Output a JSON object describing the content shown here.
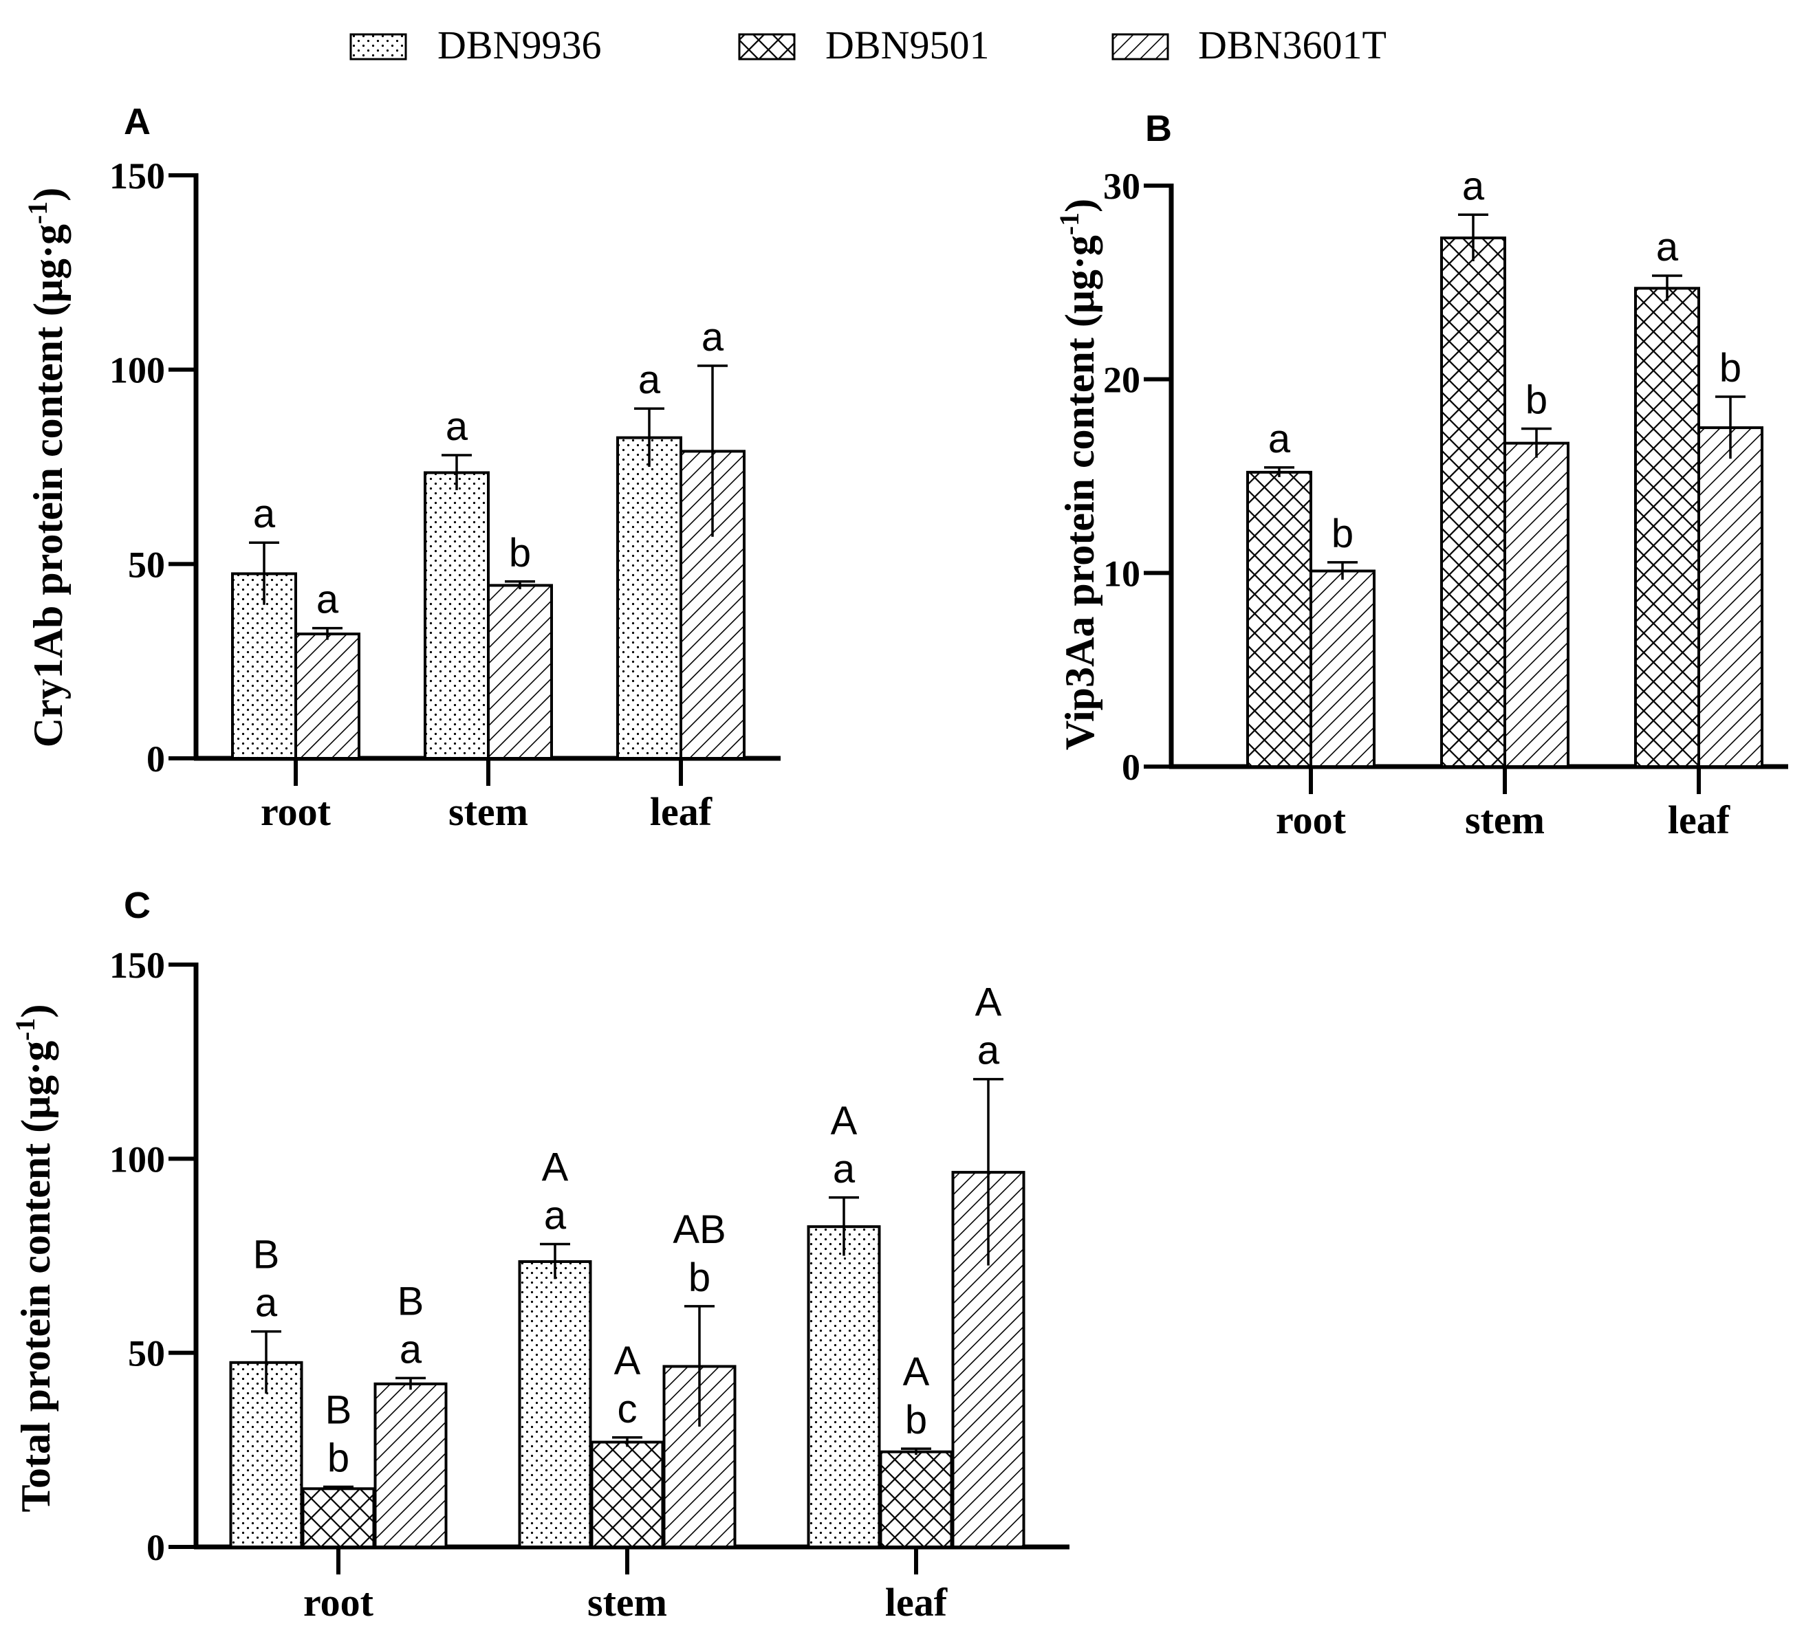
{
  "legend": {
    "entries": [
      {
        "label": "DBN9936",
        "pattern": "dots"
      },
      {
        "label": "DBN9501",
        "pattern": "cross"
      },
      {
        "label": "DBN3601T",
        "pattern": "diag"
      }
    ]
  },
  "colors": {
    "ink": "#000000",
    "background": "#ffffff"
  },
  "chart_data": [
    {
      "panel": "A",
      "type": "bar",
      "ylabel": "Cry1Ab protein content (μg·g-1)",
      "ylabel_base": "Cry1Ab protein content (μg·g",
      "ylabel_sup": "-1",
      "ylabel_close": ")",
      "ylim": [
        0,
        150
      ],
      "yticks": [
        "0",
        "50",
        "100",
        "150"
      ],
      "categories": [
        "root",
        "stem",
        "leaf"
      ],
      "series": [
        {
          "name": "DBN9936",
          "pattern": "dots",
          "values": [
            47.5,
            73.5,
            82.5
          ],
          "errors": [
            8,
            4.5,
            7.5
          ],
          "letters": [
            "a",
            "a",
            "a"
          ]
        },
        {
          "name": "DBN3601T",
          "pattern": "diag",
          "values": [
            32,
            44.5,
            79
          ],
          "errors": [
            1.5,
            1,
            22
          ],
          "letters": [
            "a",
            "b",
            "a"
          ]
        }
      ]
    },
    {
      "panel": "B",
      "type": "bar",
      "ylabel": "Vip3Aa protein content (μg·g-1)",
      "ylabel_base": "Vip3Aa protein content (μg·g",
      "ylabel_sup": "-1",
      "ylabel_close": ")",
      "ylim": [
        0,
        30
      ],
      "yticks": [
        "0",
        "10",
        "20",
        "30"
      ],
      "categories": [
        "root",
        "stem",
        "leaf"
      ],
      "series": [
        {
          "name": "DBN9501",
          "pattern": "cross",
          "values": [
            15.2,
            27.3,
            24.7
          ],
          "errors": [
            0.25,
            1.2,
            0.65
          ],
          "letters": [
            "a",
            "a",
            "a"
          ]
        },
        {
          "name": "DBN3601T",
          "pattern": "diag",
          "values": [
            10.1,
            16.7,
            17.5
          ],
          "errors": [
            0.45,
            0.75,
            1.6
          ],
          "letters": [
            "b",
            "b",
            "b"
          ]
        }
      ]
    },
    {
      "panel": "C",
      "type": "bar",
      "ylabel": "Total protein content (μg·g-1)",
      "ylabel_base": "Total protein content (μg·g",
      "ylabel_sup": "-1",
      "ylabel_close": ")",
      "ylim": [
        0,
        150
      ],
      "yticks": [
        "0",
        "50",
        "100",
        "150"
      ],
      "categories": [
        "root",
        "stem",
        "leaf"
      ],
      "series": [
        {
          "name": "DBN9936",
          "pattern": "dots",
          "values": [
            47.5,
            73.5,
            82.5
          ],
          "errors": [
            8,
            4.5,
            7.5
          ],
          "upper": [
            "B",
            "A",
            "A"
          ],
          "letters": [
            "a",
            "a",
            "a"
          ]
        },
        {
          "name": "DBN9501",
          "pattern": "cross",
          "values": [
            15,
            27,
            24.5
          ],
          "errors": [
            0.5,
            1.2,
            0.8
          ],
          "upper": [
            "B",
            "A",
            "A"
          ],
          "letters": [
            "b",
            "c",
            "b"
          ]
        },
        {
          "name": "DBN3601T",
          "pattern": "diag",
          "values": [
            42,
            46.5,
            96.5
          ],
          "errors": [
            1.5,
            15.5,
            24
          ],
          "upper": [
            "B",
            "AB",
            "A"
          ],
          "letters": [
            "a",
            "b",
            "a"
          ]
        }
      ]
    }
  ]
}
